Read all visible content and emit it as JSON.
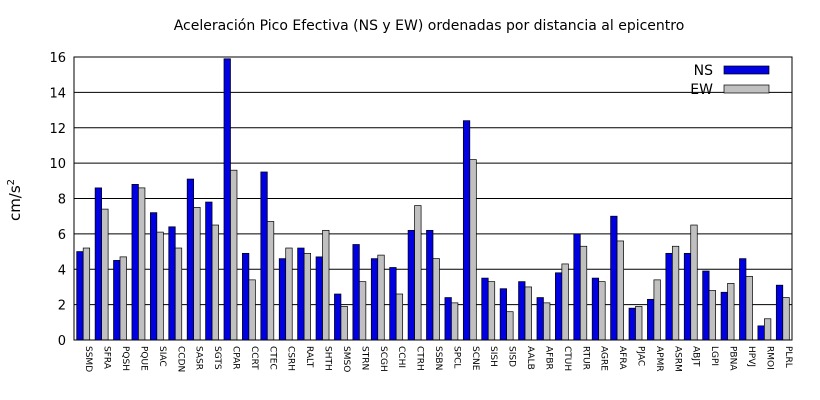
{
  "chart_data": {
    "type": "bar",
    "title": "Aceleración Pico Efectiva (NS y EW) ordenadas por distancia al epicentro",
    "ylabel": "cm/s",
    "ylabel_sup": "2",
    "xlabel": "",
    "ylim": [
      0,
      16
    ],
    "yticks": [
      0,
      2,
      4,
      6,
      8,
      10,
      12,
      14,
      16
    ],
    "grid": "horizontal",
    "legend": "top-right",
    "categories": [
      "SSMD",
      "SFRA",
      "PQSH",
      "PQUE",
      "SIAC",
      "CCDN",
      "SASR",
      "SGTS",
      "CPAR",
      "CCRT",
      "CTEC",
      "CSRH",
      "RALT",
      "SHTH",
      "SMSO",
      "STRN",
      "SCGH",
      "CCHI",
      "CTRH",
      "SSBN",
      "SPCL",
      "SCNE",
      "SISH",
      "SISD",
      "AALB",
      "AFBR",
      "CTUH",
      "RTUR",
      "AGRE",
      "AFRA",
      "PJAC",
      "APMR",
      "ASRM",
      "ABJT",
      "LGPI",
      "PBNA",
      "HPVJ",
      "RMOI",
      "PLRL"
    ],
    "series": [
      {
        "name": "NS",
        "color": "#0000e0",
        "values": [
          5.0,
          8.6,
          4.5,
          8.8,
          7.2,
          6.4,
          9.1,
          7.8,
          15.9,
          4.9,
          9.5,
          4.6,
          5.2,
          4.7,
          2.6,
          5.4,
          4.6,
          4.1,
          6.2,
          6.2,
          2.4,
          12.4,
          3.5,
          2.9,
          3.3,
          2.4,
          3.8,
          6.0,
          3.5,
          7.0,
          1.8,
          2.3,
          4.9,
          4.9,
          3.9,
          2.7,
          4.6,
          0.8,
          3.1
        ]
      },
      {
        "name": "EW",
        "color": "#c0c0c0",
        "values": [
          5.2,
          7.4,
          4.7,
          8.6,
          6.1,
          5.2,
          7.5,
          6.5,
          9.6,
          3.4,
          6.7,
          5.2,
          4.9,
          6.2,
          1.9,
          3.3,
          4.8,
          2.6,
          7.6,
          4.6,
          2.1,
          10.2,
          3.3,
          1.6,
          3.0,
          2.1,
          4.3,
          5.3,
          3.3,
          5.6,
          1.9,
          3.4,
          5.3,
          6.5,
          2.8,
          3.2,
          3.6,
          1.2,
          2.4
        ]
      }
    ]
  }
}
